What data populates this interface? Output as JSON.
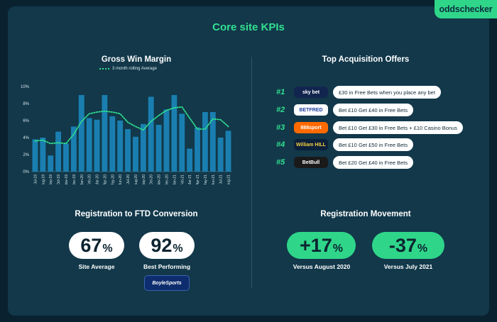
{
  "brand": {
    "logo_text": "oddschecker"
  },
  "page": {
    "title": "Core site KPIs"
  },
  "gross_win": {
    "title": "Gross Win Margin",
    "legend": "3 month rolling Average"
  },
  "chart_data": {
    "type": "bar",
    "title": "Gross Win Margin",
    "categories": [
      "Jul-19",
      "Aug-19",
      "Sep-19",
      "Oct-19",
      "Nov-19",
      "Dec-19",
      "Jan-20",
      "Feb-20",
      "Mar-20",
      "Apr-20",
      "May-20",
      "Jun-20",
      "Jul-20",
      "Aug-20",
      "Sep-20",
      "Oct-20",
      "Nov-20",
      "Dec-20",
      "Jan-21",
      "Feb-21",
      "Mar-21",
      "Apr-21",
      "May-21",
      "Jun-21",
      "Jul-21",
      "Aug-21"
    ],
    "series": [
      {
        "kind": "bar",
        "values": [
          3.8,
          4.0,
          1.9,
          4.7,
          3.3,
          5.3,
          9.0,
          6.3,
          6.1,
          9.0,
          6.5,
          6.0,
          5.0,
          4.1,
          5.6,
          8.8,
          5.5,
          7.3,
          9.0,
          6.8,
          2.7,
          5.2,
          7.0,
          7.0,
          4.0,
          4.8
        ]
      },
      {
        "kind": "line",
        "name": "3 month rolling Average",
        "values": [
          3.6,
          3.7,
          3.3,
          3.4,
          3.3,
          4.4,
          5.9,
          6.8,
          7.0,
          7.1,
          7.0,
          6.8,
          5.8,
          5.3,
          4.9,
          5.9,
          6.6,
          7.2,
          7.5,
          7.6,
          6.3,
          5.0,
          5.0,
          6.2,
          6.1,
          5.3
        ]
      }
    ],
    "ylim": [
      0,
      10
    ],
    "yticks": [
      "0%",
      "2%",
      "4%",
      "6%",
      "8%",
      "10%"
    ],
    "colors": {
      "bar": "#1a7fb0",
      "line": "#2fe08f"
    },
    "grid": false
  },
  "offers": {
    "title": "Top Acquisition Offers",
    "items": [
      {
        "rank": "#1",
        "brand": "sky bet",
        "offer": "£30 in Free Bets when you place any bet",
        "logo_bg": "#12254f",
        "logo_fg": "#ffffff"
      },
      {
        "rank": "#2",
        "brand": "BETFRED",
        "offer": "Bet £10 Get £40 in Free Bets",
        "logo_bg": "#ffffff",
        "logo_fg": "#1b3fa0"
      },
      {
        "rank": "#3",
        "brand": "888sport",
        "offer": "Bet £10 Get £30 in Free Bets + £10 Casino Bonus",
        "logo_bg": "#ff6a00",
        "logo_fg": "#ffffff"
      },
      {
        "rank": "#4",
        "brand": "William HILL",
        "offer": "Bet £10 Get £50 in Free Bets",
        "logo_bg": "#0b1f3a",
        "logo_fg": "#f5d142"
      },
      {
        "rank": "#5",
        "brand": "BetBull",
        "offer": "Bet £20 Get £40 in Free Bets",
        "logo_bg": "#1a1a1a",
        "logo_fg": "#ffffff"
      }
    ]
  },
  "registration_ftd": {
    "title": "Registration to FTD Conversion",
    "site_average": {
      "value": "67",
      "unit": "%",
      "label": "Site Average"
    },
    "best": {
      "value": "92",
      "unit": "%",
      "label": "Best Performing",
      "brand": "BoyleSports"
    }
  },
  "registration_movement": {
    "title": "Registration Movement",
    "aug": {
      "value": "+17",
      "unit": "%",
      "label": "Versus August 2020"
    },
    "jul": {
      "value": "-37",
      "unit": "%",
      "label": "Versus July 2021"
    }
  }
}
